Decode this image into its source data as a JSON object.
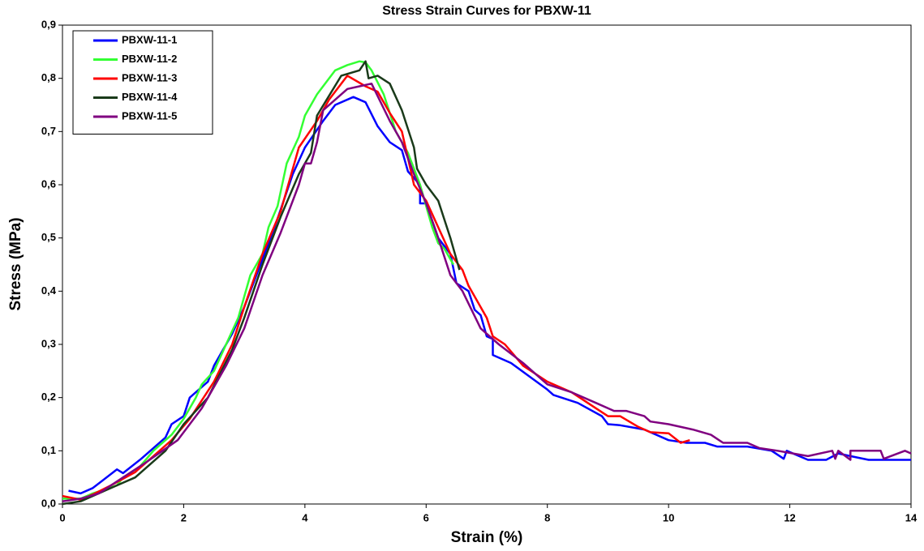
{
  "chart_data": {
    "type": "line",
    "title": "Stress Strain Curves for PBXW-11",
    "x_label": "Strain (%)",
    "y_label": "Stress (MPa)",
    "xlim": [
      0,
      14
    ],
    "xticks": [
      0,
      2,
      4,
      6,
      8,
      10,
      12,
      14
    ],
    "ylim": [
      0,
      0.9
    ],
    "yticks": [
      {
        "value": 0,
        "label": "0,0"
      },
      {
        "value": 0.1,
        "label": "0,1"
      },
      {
        "value": 0.2,
        "label": "0,2"
      },
      {
        "value": 0.3,
        "label": "0,3"
      },
      {
        "value": 0.4,
        "label": "0,4"
      },
      {
        "value": 0.5,
        "label": "0,5"
      },
      {
        "value": 0.6,
        "label": "0,6"
      },
      {
        "value": 0.7,
        "label": "0,7"
      },
      {
        "value": 0.8,
        "label": "0,8"
      },
      {
        "value": 0.9,
        "label": "0,9"
      }
    ],
    "grid": false,
    "legend": "upper left",
    "series": [
      {
        "name": "PBXW-11-1",
        "color": "#0000ff",
        "x": [
          0.1,
          0.3,
          0.5,
          0.9,
          1.0,
          1.3,
          1.7,
          1.8,
          2.0,
          2.1,
          2.4,
          2.5,
          2.8,
          3.0,
          3.2,
          3.5,
          3.8,
          4.0,
          4.3,
          4.5,
          4.8,
          5.0,
          5.2,
          5.4,
          5.6,
          5.7,
          5.9,
          5.9,
          6.0,
          6.2,
          6.4,
          6.5,
          6.7,
          6.8,
          6.9,
          7.0,
          7.1,
          7.1,
          7.4,
          7.7,
          8.0,
          8.1,
          8.5,
          8.9,
          9.0,
          9.2,
          9.6,
          10.0,
          10.3,
          10.6,
          10.8,
          11.3,
          11.7,
          11.9,
          11.95,
          12.3,
          12.6,
          12.8,
          13.0,
          13.3,
          14.0
        ],
        "values": [
          0.025,
          0.02,
          0.03,
          0.065,
          0.058,
          0.085,
          0.125,
          0.15,
          0.165,
          0.2,
          0.23,
          0.26,
          0.32,
          0.37,
          0.43,
          0.52,
          0.62,
          0.67,
          0.72,
          0.75,
          0.765,
          0.755,
          0.71,
          0.68,
          0.665,
          0.625,
          0.6,
          0.565,
          0.565,
          0.5,
          0.47,
          0.415,
          0.4,
          0.365,
          0.355,
          0.315,
          0.31,
          0.28,
          0.265,
          0.24,
          0.215,
          0.205,
          0.19,
          0.165,
          0.15,
          0.148,
          0.14,
          0.12,
          0.115,
          0.115,
          0.108,
          0.108,
          0.1,
          0.085,
          0.1,
          0.083,
          0.083,
          0.095,
          0.09,
          0.083,
          0.083
        ]
      },
      {
        "name": "PBXW-11-2",
        "color": "#33ff33",
        "x": [
          0.0,
          0.3,
          0.5,
          0.9,
          1.0,
          1.2,
          1.5,
          1.8,
          2.0,
          2.2,
          2.3,
          2.5,
          2.7,
          2.9,
          3.0,
          3.1,
          3.3,
          3.4,
          3.55,
          3.7,
          3.9,
          4.0,
          4.2,
          4.5,
          4.7,
          4.9,
          5.0,
          5.1,
          5.3,
          5.5,
          5.7,
          5.9,
          6.1,
          6.2,
          6.3,
          6.45
        ],
        "values": [
          0.01,
          0.01,
          0.02,
          0.035,
          0.05,
          0.06,
          0.1,
          0.13,
          0.16,
          0.2,
          0.225,
          0.25,
          0.3,
          0.35,
          0.39,
          0.43,
          0.47,
          0.52,
          0.56,
          0.64,
          0.69,
          0.73,
          0.77,
          0.815,
          0.825,
          0.832,
          0.83,
          0.815,
          0.77,
          0.7,
          0.66,
          0.6,
          0.52,
          0.49,
          0.48,
          0.45
        ]
      },
      {
        "name": "PBXW-11-3",
        "color": "#ff0000",
        "x": [
          0.0,
          0.3,
          0.5,
          0.8,
          1.2,
          1.5,
          1.8,
          2.1,
          2.5,
          2.8,
          3.0,
          3.3,
          3.6,
          3.9,
          4.2,
          4.4,
          4.7,
          5.0,
          5.2,
          5.4,
          5.6,
          5.8,
          6.0,
          6.2,
          6.4,
          6.6,
          6.7,
          7.0,
          7.1,
          7.3,
          7.6,
          8.0,
          8.4,
          8.8,
          9.0,
          9.2,
          9.5,
          9.7,
          10.0,
          10.2,
          10.35
        ],
        "values": [
          0.015,
          0.008,
          0.018,
          0.035,
          0.06,
          0.09,
          0.12,
          0.16,
          0.23,
          0.3,
          0.37,
          0.47,
          0.55,
          0.67,
          0.72,
          0.76,
          0.805,
          0.785,
          0.775,
          0.735,
          0.7,
          0.6,
          0.57,
          0.52,
          0.47,
          0.44,
          0.41,
          0.35,
          0.315,
          0.3,
          0.26,
          0.23,
          0.21,
          0.18,
          0.165,
          0.165,
          0.145,
          0.135,
          0.133,
          0.115,
          0.12
        ]
      },
      {
        "name": "PBXW-11-4",
        "color": "#1a3a1a",
        "x": [
          0.0,
          0.3,
          0.5,
          0.9,
          1.2,
          1.7,
          2.0,
          2.4,
          2.8,
          3.0,
          3.3,
          3.6,
          3.9,
          4.1,
          4.2,
          4.6,
          4.9,
          5.0,
          5.05,
          5.2,
          5.4,
          5.6,
          5.8,
          5.85,
          6.0,
          6.2,
          6.4,
          6.55
        ],
        "values": [
          0.0,
          0.005,
          0.015,
          0.035,
          0.05,
          0.1,
          0.15,
          0.2,
          0.29,
          0.35,
          0.45,
          0.54,
          0.62,
          0.66,
          0.73,
          0.805,
          0.815,
          0.832,
          0.8,
          0.805,
          0.79,
          0.74,
          0.67,
          0.63,
          0.6,
          0.57,
          0.5,
          0.44
        ]
      },
      {
        "name": "PBXW-11-5",
        "color": "#800080",
        "x": [
          0.0,
          0.3,
          0.6,
          1.0,
          1.4,
          1.9,
          2.3,
          2.7,
          3.0,
          3.3,
          3.6,
          3.9,
          4.0,
          4.1,
          4.2,
          4.3,
          4.7,
          4.9,
          5.1,
          5.4,
          5.6,
          5.8,
          6.0,
          6.2,
          6.4,
          6.6,
          6.9,
          7.2,
          7.6,
          8.0,
          8.4,
          8.8,
          9.1,
          9.3,
          9.6,
          9.7,
          10.0,
          10.4,
          10.7,
          10.9,
          11.3,
          11.5,
          11.8,
          12.3,
          12.7,
          12.75,
          12.8,
          13.0,
          13.0,
          13.5,
          13.55,
          13.9,
          14.0
        ],
        "values": [
          0.005,
          0.01,
          0.02,
          0.05,
          0.08,
          0.12,
          0.18,
          0.26,
          0.33,
          0.43,
          0.51,
          0.6,
          0.64,
          0.64,
          0.68,
          0.74,
          0.78,
          0.785,
          0.79,
          0.72,
          0.68,
          0.62,
          0.565,
          0.5,
          0.43,
          0.4,
          0.33,
          0.3,
          0.265,
          0.225,
          0.21,
          0.19,
          0.175,
          0.175,
          0.165,
          0.155,
          0.15,
          0.14,
          0.13,
          0.115,
          0.115,
          0.105,
          0.1,
          0.09,
          0.1,
          0.085,
          0.1,
          0.083,
          0.1,
          0.1,
          0.085,
          0.1,
          0.095
        ]
      }
    ]
  }
}
